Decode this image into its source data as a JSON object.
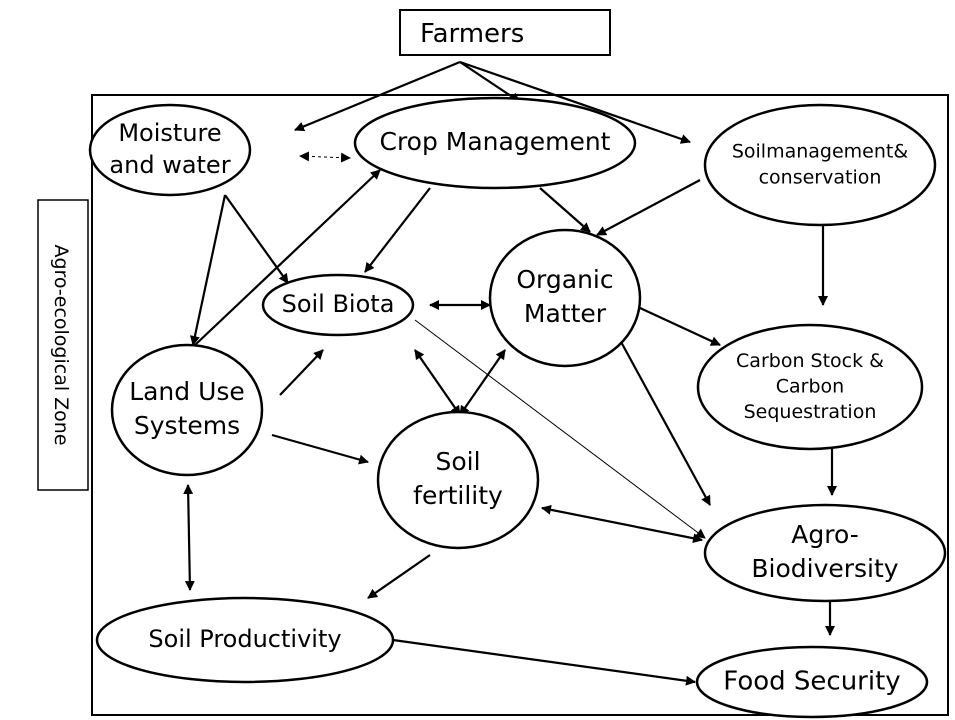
{
  "title": "Farmers",
  "side_label": "Agro-ecological Zone",
  "nodes": [
    {
      "lines": [
        "Moisture",
        "and water"
      ]
    },
    {
      "lines": [
        "Crop Management"
      ]
    },
    {
      "lines": [
        "Soilmanagement&",
        "conservation"
      ]
    },
    {
      "lines": [
        "Soil Biota"
      ]
    },
    {
      "lines": [
        "Organic",
        "Matter"
      ]
    },
    {
      "lines": [
        "Carbon Stock &",
        "Carbon",
        "Sequestration"
      ]
    },
    {
      "lines": [
        "Land Use",
        "Systems"
      ]
    },
    {
      "lines": [
        "Soil",
        "fertility"
      ]
    },
    {
      "lines": [
        "Agro-",
        "Biodiversity"
      ]
    },
    {
      "lines": [
        "Soil Productivity"
      ]
    },
    {
      "lines": [
        "Food Security"
      ]
    }
  ]
}
